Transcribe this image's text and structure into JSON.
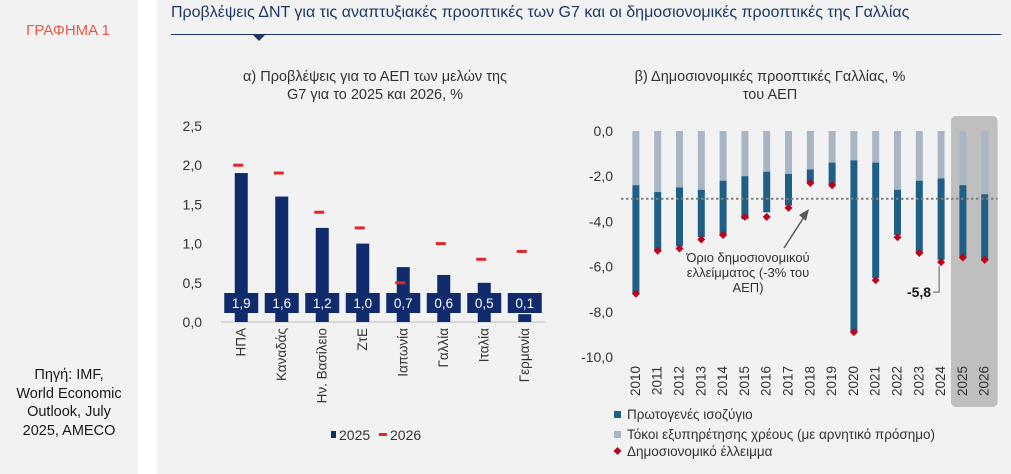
{
  "figure_label": "ΓΡΑΦΗΜΑ 1",
  "page_title": "Προβλέψεις ΔΝΤ για τις αναπτυξιακές προοπτικές των G7 και οι δημοσιονομικές προοπτικές της Γαλλίας",
  "source_lines": [
    "Πηγή: IMF,",
    "World Economic",
    "Outlook, July",
    "2025, AMECO"
  ],
  "chart_data": [
    {
      "type": "bar",
      "title_lines": [
        "α) Προβλέψεις για το ΑΕΠ των μελών της",
        "G7 για το 2025 και 2026, %"
      ],
      "categories": [
        "ΗΠΑ",
        "Καναδάς",
        "Ην. Βασίλειο",
        "ΖτΕ",
        "Ιαπωνία",
        "Γαλλία",
        "Ιταλία",
        "Γερμανία"
      ],
      "series": [
        {
          "name": "2025",
          "values": [
            1.9,
            1.6,
            1.2,
            1.0,
            0.7,
            0.6,
            0.5,
            0.1
          ],
          "color": "#0f2b6b"
        },
        {
          "name": "2026",
          "values": [
            2.0,
            1.9,
            1.4,
            1.2,
            0.5,
            1.0,
            0.8,
            0.9
          ],
          "color": "#e0252b"
        }
      ],
      "data_labels": [
        "1,9",
        "1,6",
        "1,2",
        "1,0",
        "0,7",
        "0,6",
        "0,5",
        "0,1"
      ],
      "yticks": [
        0,
        0.5,
        1.0,
        1.5,
        2.0,
        2.5
      ],
      "ytick_labels": [
        "0,0",
        "0,5",
        "1,0",
        "1,5",
        "2,0",
        "2,5"
      ],
      "ylim": [
        0,
        2.5
      ],
      "legend": [
        "2025",
        "2026"
      ],
      "legend_position": "bottom",
      "grid": false
    },
    {
      "type": "bar",
      "title_lines": [
        "β) Δημοσιονομικές προοπτικές Γαλλίας, %",
        "του ΑΕΠ"
      ],
      "categories": [
        "2010",
        "2011",
        "2012",
        "2013",
        "2014",
        "2015",
        "2016",
        "2017",
        "2018",
        "2019",
        "2020",
        "2021",
        "2022",
        "2023",
        "2024",
        "2025",
        "2026"
      ],
      "series": [
        {
          "name": "Πρωτογενές ισοζύγιο",
          "values": [
            -4.8,
            -2.6,
            -2.6,
            -2.1,
            -2.4,
            -1.9,
            -1.8,
            -1.4,
            -0.6,
            -1.0,
            -7.6,
            -5.1,
            -2.0,
            -3.2,
            -3.6,
            -3.2,
            -2.9
          ],
          "color": "#1f5f85"
        },
        {
          "name": "Τόκοι εξυπηρέτησης χρέους (με αρνητικό πρόσημο)",
          "values": [
            -2.4,
            -2.7,
            -2.5,
            -2.6,
            -2.2,
            -2.0,
            -1.8,
            -1.9,
            -1.7,
            -1.4,
            -1.3,
            -1.4,
            -2.6,
            -2.2,
            -2.1,
            -2.4,
            -2.8
          ],
          "color": "#a7b6c2"
        },
        {
          "name": "Δημοσιονομικό έλλειμμα",
          "values": [
            -7.2,
            -5.3,
            -5.2,
            -4.8,
            -4.6,
            -3.8,
            -3.8,
            -3.4,
            -2.3,
            -2.4,
            -8.9,
            -6.6,
            -4.7,
            -5.4,
            -5.8,
            -5.6,
            -5.7
          ],
          "color": "#c0001a"
        }
      ],
      "yticks": [
        0,
        -2,
        -4,
        -6,
        -8,
        -10
      ],
      "ytick_labels": [
        "0,0",
        "-2,0",
        "-4,0",
        "-6,0",
        "-8,0",
        "-10,0"
      ],
      "ylim": [
        -10,
        0
      ],
      "reference_line": {
        "value": -3.0,
        "label_lines": [
          "Όριο δημοσιονομικού",
          "ελλείμματος (-3% του",
          "ΑΕΠ)"
        ]
      },
      "highlight_years": [
        "2025",
        "2026"
      ],
      "callout_label": "-5,8",
      "legend": [
        "Πρωτογενές ισοζύγιο",
        "Τόκοι εξυπηρέτησης χρέους (με αρνητικό πρόσημο)",
        "Δημοσιονομικό έλλειμμα"
      ],
      "legend_position": "bottom",
      "grid": false
    }
  ]
}
